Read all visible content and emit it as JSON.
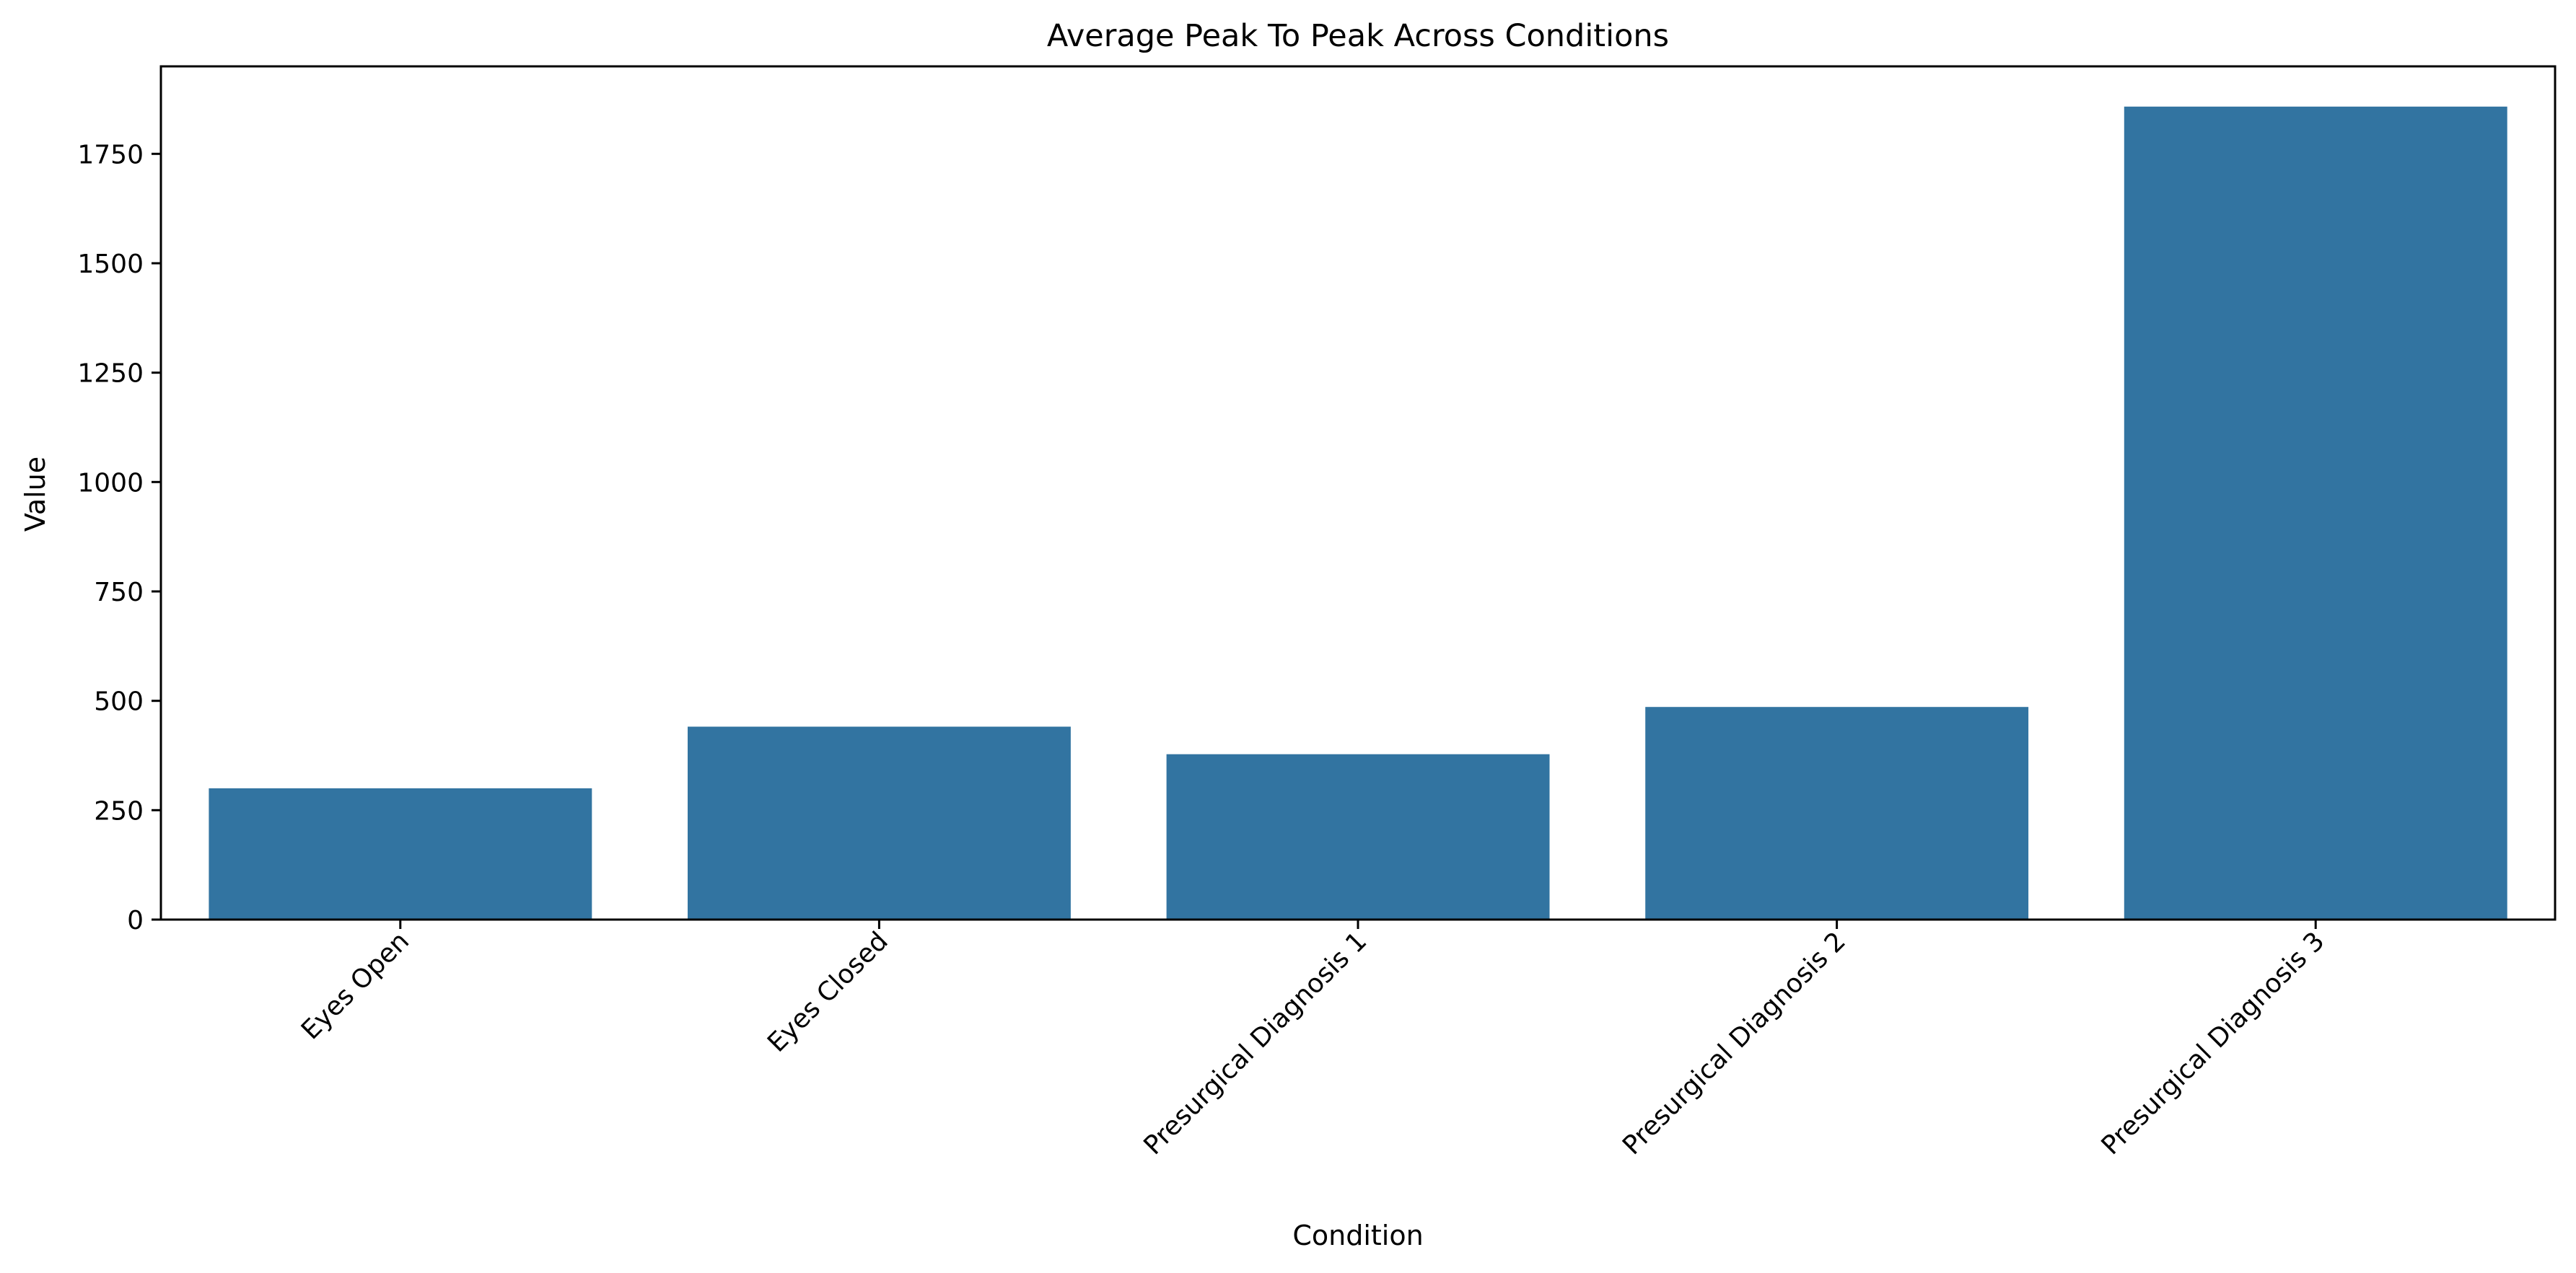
{
  "chart_data": {
    "type": "bar",
    "title": "Average Peak To Peak Across Conditions",
    "xlabel": "Condition",
    "ylabel": "Value",
    "categories": [
      "Eyes Open",
      "Eyes Closed",
      "Presurgical Diagnosis 1",
      "Presurgical Diagnosis 2",
      "Presurgical Diagnosis 3"
    ],
    "values": [
      300,
      441,
      378,
      486,
      1858
    ],
    "ylim": [
      0,
      1950
    ],
    "yticks": [
      0,
      250,
      500,
      750,
      1000,
      1250,
      1500,
      1750
    ],
    "bar_color": "#3274a1",
    "grid": false,
    "legend": "none",
    "xtick_rotation": "45 degrees"
  }
}
